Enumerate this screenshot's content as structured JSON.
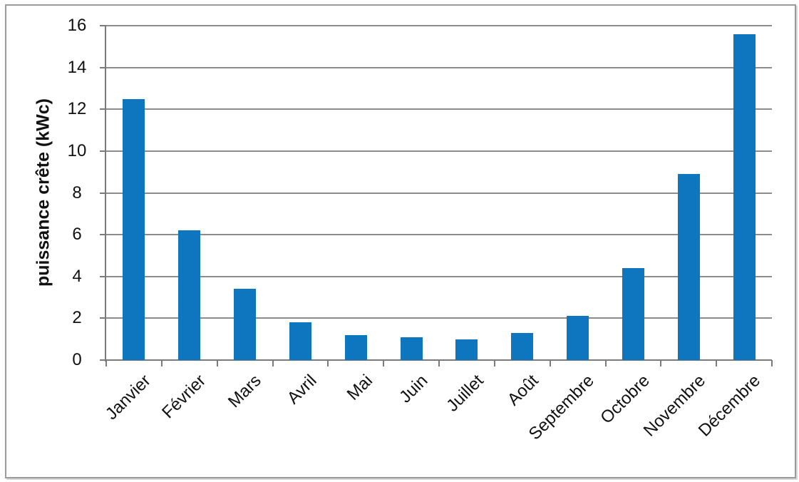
{
  "chart_data": {
    "type": "bar",
    "title": "",
    "xlabel": "",
    "ylabel": "puissance crête (kWc)",
    "categories": [
      "Janvier",
      "Février",
      "Mars",
      "Avril",
      "Mai",
      "Juin",
      "Juillet",
      "Août",
      "Septembre",
      "Octobre",
      "Novembre",
      "Décembre"
    ],
    "values": [
      12.5,
      6.2,
      3.4,
      1.8,
      1.2,
      1.1,
      1.0,
      1.3,
      2.1,
      4.4,
      8.9,
      15.6
    ],
    "ylim": [
      0,
      16
    ],
    "ytick_step": 2,
    "ytick_labels": [
      "0",
      "2",
      "4",
      "6",
      "8",
      "10",
      "12",
      "14",
      "16"
    ],
    "grid": true,
    "legend": false,
    "x_label_rotation_deg": -45,
    "colors": {
      "bar": "#0D76BF",
      "gridline": "#8C8C8C",
      "axis": "#7A7A7A",
      "text": "#111111",
      "frame_border": "#9B9B9B",
      "background": "#FFFFFF"
    }
  }
}
